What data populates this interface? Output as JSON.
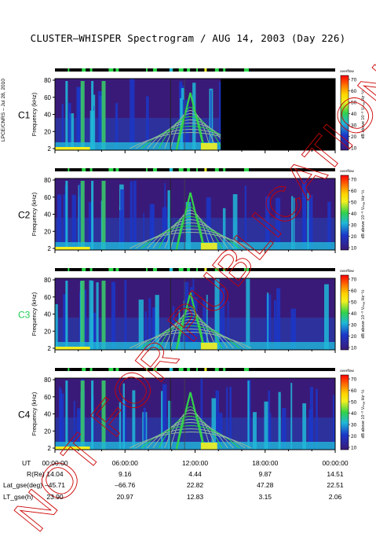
{
  "title": "CLUSTER–WHISPER Spectrogram / AUG 14, 2003 (Day 226)",
  "side_stamp": "LPCE/CNRS – Jul 28, 2010",
  "watermark": "NOT FOR PUBLICATION",
  "colors": {
    "c3_label": "#22cc55",
    "watermark": "#cc0000",
    "bg_low": "#3a1a78",
    "bg_mid": "#1b37c8",
    "cyan": "#20b8d8",
    "green": "#32d24a",
    "yellow": "#f4f020",
    "nodata": "#000000"
  },
  "panels": [
    {
      "name": "C1",
      "ylabel": "Frequency (kHz)",
      "colorbar_label": "dB above 10⁻⁸ Vₘₐₓ Hz⁻½",
      "colorbar_top": "overflow",
      "nodata_after": "14:20:00"
    },
    {
      "name": "C2",
      "ylabel": "Frequency (kHz)",
      "colorbar_label": "dB above 10⁻⁸ Vₘₐₓ Hz⁻½",
      "colorbar_top": "overflow"
    },
    {
      "name": "C3",
      "ylabel": "Frequency (kHz)",
      "colorbar_label": "dB above 10⁻⁸ Vₘₐₓ Hz⁻½",
      "colorbar_top": "overflow"
    },
    {
      "name": "C4",
      "ylabel": "Frequency (kHz)",
      "colorbar_label": "dB above 10⁻⁸ Vₘₐₓ Hz⁻½",
      "colorbar_top": "overflow"
    }
  ],
  "chart_data": {
    "type": "heatmap",
    "title": "CLUSTER–WHISPER Spectrogram / AUG 14, 2003 (Day 226)",
    "ylabel": "Frequency (kHz)",
    "ylim": [
      2,
      80
    ],
    "yticks": [
      "80",
      "60",
      "40",
      "20",
      "2"
    ],
    "xlim": [
      "00:00:00",
      "24:00:00"
    ],
    "colorbar": {
      "label": "dB above 10⁻⁸ Vₘₐₓ Hz⁻½",
      "ticks": [
        "70",
        "60",
        "50",
        "40",
        "30",
        "20",
        "10"
      ],
      "range": [
        10,
        70
      ]
    },
    "colorbar_colors": [
      "#ff0000",
      "#ff6a00",
      "#ffd400",
      "#f4f020",
      "#32d24a",
      "#20b8d8",
      "#1b37c8",
      "#3a1a78"
    ]
  },
  "time_table": {
    "rows": [
      {
        "label": "UT",
        "values": [
          "00:00:00",
          "06:00:00",
          "12:00:00",
          "18:00:00",
          "00:00:00"
        ]
      },
      {
        "label": "R(Re)",
        "values": [
          "14.04",
          "9.16",
          "4.44",
          "9.87",
          "14.51"
        ]
      },
      {
        "label": "Lat_gse(deg)",
        "values": [
          "–45.71",
          "–66.76",
          "22.82",
          "47.28",
          "22.51"
        ]
      },
      {
        "label": "LT_gse(h)",
        "values": [
          "23.90",
          "20.97",
          "12.83",
          "3.15",
          "2.06"
        ]
      }
    ]
  }
}
